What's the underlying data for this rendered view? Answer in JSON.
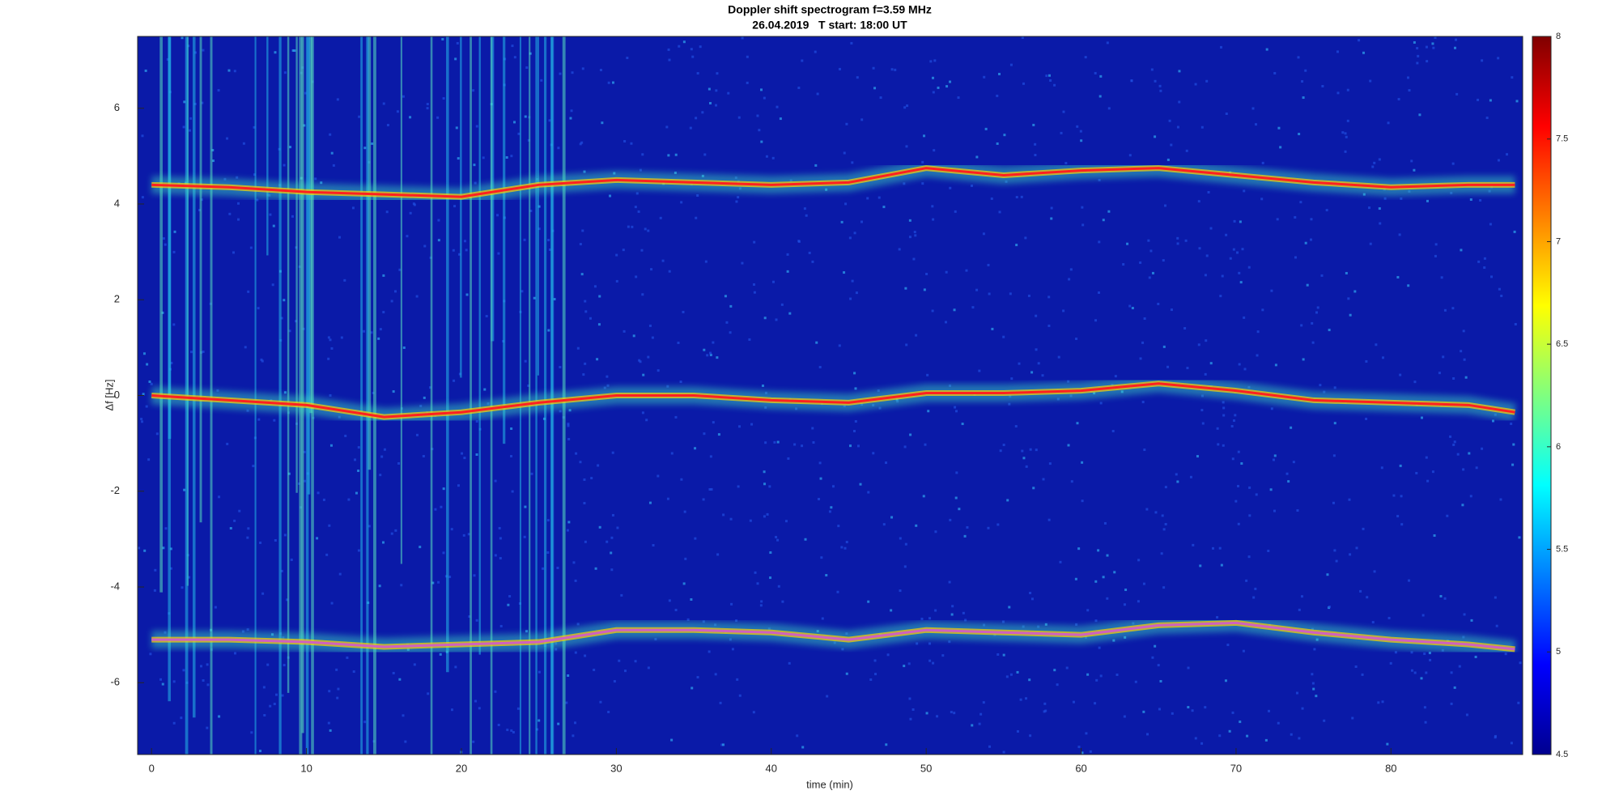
{
  "chart_data": {
    "type": "spectrogram",
    "title": "Doppler shift spectrogram f=3.59 MHz",
    "subtitle": "26.04.2019   T start: 18:00 UT",
    "x_label": "time (min)",
    "y_label": "Δf [Hz]",
    "x": [
      0,
      5,
      10,
      15,
      20,
      25,
      30,
      35,
      40,
      45,
      50,
      55,
      60,
      65,
      70,
      75,
      80,
      85,
      88
    ],
    "series": [
      {
        "color": "#ff2020",
        "values": [
          4.4,
          4.35,
          4.25,
          4.2,
          4.15,
          4.4,
          4.5,
          4.45,
          4.4,
          4.45,
          4.75,
          4.6,
          4.7,
          4.75,
          4.6,
          4.45,
          4.35,
          4.4,
          4.4
        ]
      },
      {
        "color": "#ff2020",
        "values": [
          0,
          -0.1,
          -0.2,
          -0.45,
          -0.35,
          -0.15,
          0,
          0,
          -0.1,
          -0.15,
          0.05,
          0.05,
          0.1,
          0.25,
          0.1,
          -0.1,
          -0.15,
          -0.2,
          -0.35
        ]
      },
      {
        "color": "#d060c0",
        "values": [
          -5.1,
          -5.1,
          -5.15,
          -5.25,
          -5.2,
          -5.15,
          -4.9,
          -4.9,
          -4.95,
          -5.1,
          -4.9,
          -4.95,
          -5.0,
          -4.8,
          -4.75,
          -4.95,
          -5.1,
          -5.2,
          -5.3
        ]
      }
    ],
    "xlim": [
      -0.9,
      88.5
    ],
    "xticks": [
      0,
      10,
      20,
      30,
      40,
      50,
      60,
      70,
      80
    ],
    "ylim": [
      -7.5,
      7.5
    ],
    "yticks": [
      -6,
      -4,
      -2,
      0,
      2,
      4,
      6
    ],
    "clim": [
      4.5,
      8
    ],
    "cticks": [
      4.5,
      5,
      5.5,
      6,
      6.5,
      7,
      7.5,
      8
    ],
    "colormap": "jet"
  }
}
